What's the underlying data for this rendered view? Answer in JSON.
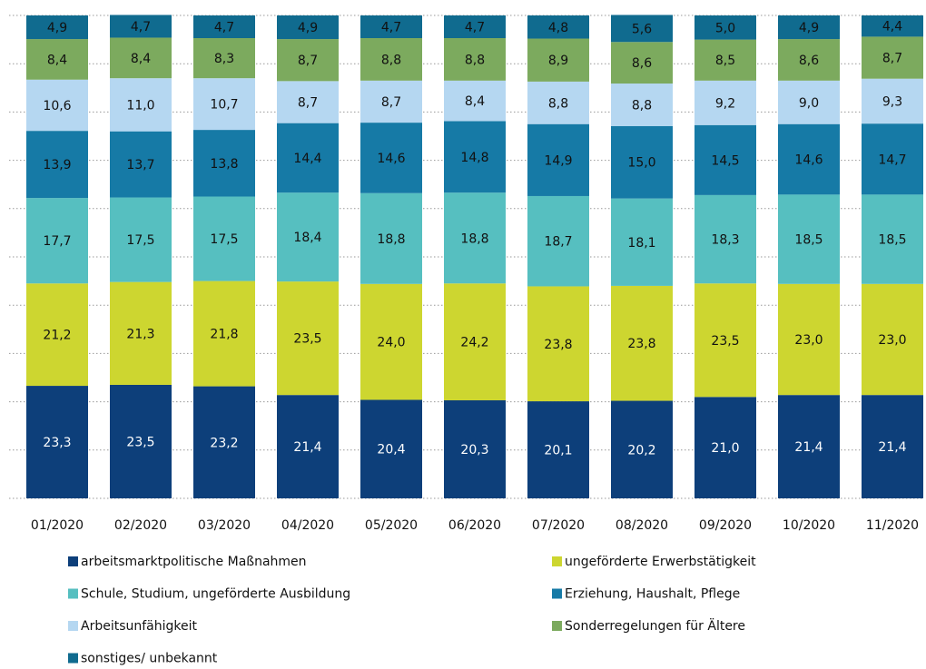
{
  "chart_data": {
    "type": "stacked_bar",
    "categories": [
      "01/2020",
      "02/2020",
      "03/2020",
      "04/2020",
      "05/2020",
      "06/2020",
      "07/2020",
      "08/2020",
      "09/2020",
      "10/2020",
      "11/2020"
    ],
    "ylim": [
      0,
      100
    ],
    "yticks": [
      0,
      10,
      20,
      30,
      40,
      50,
      60,
      70,
      80,
      90,
      100
    ],
    "grid": true,
    "series": [
      {
        "name": "arbeitsmarktpolitische Maßnahmen",
        "color": "#0d3f7a",
        "values": [
          23.3,
          23.5,
          23.2,
          21.4,
          20.4,
          20.3,
          20.1,
          20.2,
          21.0,
          21.4,
          21.4
        ],
        "value_labels": [
          "23,3",
          "23,5",
          "23,2",
          "21,4",
          "20,4",
          "20,3",
          "20,1",
          "20,2",
          "21,0",
          "21,4",
          "21,4"
        ]
      },
      {
        "name": "ungeförderte Erwerbstätigkeit",
        "color": "#cdd630",
        "values": [
          21.2,
          21.3,
          21.8,
          23.5,
          24.0,
          24.2,
          23.8,
          23.8,
          23.5,
          23.0,
          23.0
        ],
        "value_labels": [
          "21,2",
          "21,3",
          "21,8",
          "23,5",
          "24,0",
          "24,2",
          "23,8",
          "23,8",
          "23,5",
          "23,0",
          "23,0"
        ]
      },
      {
        "name": "Schule, Studium, ungeförderte Ausbildung",
        "color": "#56bfc0",
        "values": [
          17.7,
          17.5,
          17.5,
          18.4,
          18.8,
          18.8,
          18.7,
          18.1,
          18.3,
          18.5,
          18.5
        ],
        "value_labels": [
          "17,7",
          "17,5",
          "17,5",
          "18,4",
          "18,8",
          "18,8",
          "18,7",
          "18,1",
          "18,3",
          "18,5",
          "18,5"
        ]
      },
      {
        "name": "Erziehung, Haushalt, Pflege",
        "color": "#167aa6",
        "values": [
          13.9,
          13.7,
          13.8,
          14.4,
          14.6,
          14.8,
          14.9,
          15.0,
          14.5,
          14.6,
          14.7
        ],
        "value_labels": [
          "13,9",
          "13,7",
          "13,8",
          "14,4",
          "14,6",
          "14,8",
          "14,9",
          "15,0",
          "14,5",
          "14,6",
          "14,7"
        ]
      },
      {
        "name": "Arbeitsunfähigkeit",
        "color": "#b5d7f1",
        "values": [
          10.6,
          11.0,
          10.7,
          8.7,
          8.7,
          8.4,
          8.8,
          8.8,
          9.2,
          9.0,
          9.3
        ],
        "value_labels": [
          "10,6",
          "11,0",
          "10,7",
          "8,7",
          "8,7",
          "8,4",
          "8,8",
          "8,8",
          "9,2",
          "9,0",
          "9,3"
        ]
      },
      {
        "name": "Sonderregelungen für Ältere",
        "color": "#7caa5e",
        "values": [
          8.4,
          8.4,
          8.3,
          8.7,
          8.8,
          8.8,
          8.9,
          8.6,
          8.5,
          8.6,
          8.7
        ],
        "value_labels": [
          "8,4",
          "8,4",
          "8,3",
          "8,7",
          "8,8",
          "8,8",
          "8,9",
          "8,6",
          "8,5",
          "8,6",
          "8,7"
        ]
      },
      {
        "name": "sonstiges/ unbekannt",
        "color": "#106b8f",
        "values": [
          4.9,
          4.7,
          4.7,
          4.9,
          4.7,
          4.7,
          4.8,
          5.6,
          5.0,
          4.9,
          4.4
        ],
        "value_labels": [
          "4,9",
          "4,7",
          "4,7",
          "4,9",
          "4,7",
          "4,7",
          "4,8",
          "5,6",
          "5,0",
          "4,9",
          "4,4"
        ]
      }
    ]
  }
}
